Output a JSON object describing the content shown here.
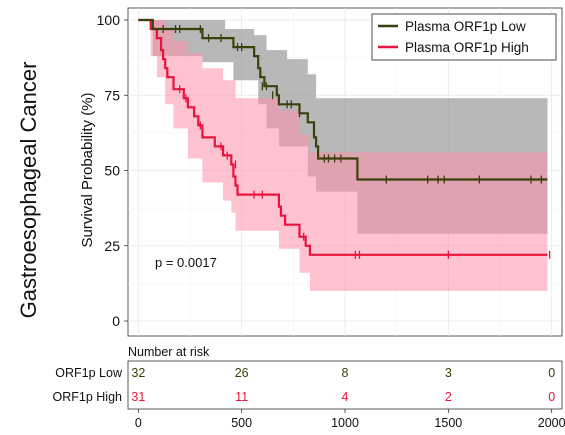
{
  "figure": {
    "row_label": "Gastroesophageal Cancer"
  },
  "chart_data": {
    "type": "line",
    "title": "",
    "xlabel": "",
    "ylabel": "Survival Probability (%)",
    "xlim": [
      -50,
      2050
    ],
    "ylim": [
      0,
      100
    ],
    "x_ticks": [
      0,
      500,
      1000,
      1500,
      2000
    ],
    "y_ticks": [
      0,
      25,
      50,
      75,
      100
    ],
    "grid": true,
    "legend_position": "top-right",
    "annotation": "p = 0.0017",
    "colors": {
      "low": "#3b3f0a",
      "high": "#e8143c",
      "low_band": "#9a9a9a",
      "high_band": "#ff8fab"
    },
    "series": [
      {
        "name": "Plasma ORF1p Low",
        "steps": [
          [
            0,
            100
          ],
          [
            70,
            97
          ],
          [
            310,
            94
          ],
          [
            460,
            91
          ],
          [
            560,
            88
          ],
          [
            580,
            84
          ],
          [
            590,
            81
          ],
          [
            610,
            78
          ],
          [
            670,
            75
          ],
          [
            680,
            72
          ],
          [
            780,
            69
          ],
          [
            820,
            66
          ],
          [
            850,
            61
          ],
          [
            860,
            58
          ],
          [
            870,
            54
          ],
          [
            1060,
            47
          ],
          [
            1980,
            47
          ]
        ],
        "censored": [
          [
            120,
            97
          ],
          [
            180,
            97
          ],
          [
            200,
            97
          ],
          [
            300,
            97
          ],
          [
            340,
            94
          ],
          [
            400,
            94
          ],
          [
            480,
            91
          ],
          [
            500,
            91
          ],
          [
            600,
            78
          ],
          [
            620,
            78
          ],
          [
            650,
            75
          ],
          [
            720,
            72
          ],
          [
            740,
            72
          ],
          [
            780,
            69
          ],
          [
            900,
            54
          ],
          [
            920,
            54
          ],
          [
            950,
            54
          ],
          [
            980,
            54
          ],
          [
            1200,
            47
          ],
          [
            1400,
            47
          ],
          [
            1450,
            47
          ],
          [
            1480,
            47
          ],
          [
            1650,
            47
          ],
          [
            1900,
            47
          ],
          [
            1950,
            47
          ]
        ],
        "band_upper": [
          [
            0,
            100
          ],
          [
            360,
            100
          ],
          [
            420,
            97
          ],
          [
            560,
            95
          ],
          [
            620,
            90
          ],
          [
            720,
            87
          ],
          [
            820,
            82
          ],
          [
            860,
            74
          ],
          [
            1060,
            74
          ],
          [
            1980,
            74
          ]
        ],
        "band_lower": [
          [
            0,
            100
          ],
          [
            70,
            88
          ],
          [
            310,
            86
          ],
          [
            460,
            80
          ],
          [
            580,
            72
          ],
          [
            620,
            64
          ],
          [
            680,
            58
          ],
          [
            820,
            48
          ],
          [
            860,
            43
          ],
          [
            1060,
            29
          ],
          [
            1980,
            29
          ]
        ]
      },
      {
        "name": "Plasma ORF1p High",
        "steps": [
          [
            0,
            100
          ],
          [
            60,
            97
          ],
          [
            90,
            94
          ],
          [
            110,
            90
          ],
          [
            120,
            87
          ],
          [
            130,
            84
          ],
          [
            140,
            81
          ],
          [
            170,
            77
          ],
          [
            220,
            74
          ],
          [
            240,
            71
          ],
          [
            270,
            68
          ],
          [
            290,
            65
          ],
          [
            310,
            61
          ],
          [
            370,
            58
          ],
          [
            410,
            55
          ],
          [
            450,
            52
          ],
          [
            460,
            48
          ],
          [
            470,
            45
          ],
          [
            480,
            42
          ],
          [
            680,
            38
          ],
          [
            690,
            35
          ],
          [
            710,
            32
          ],
          [
            780,
            28
          ],
          [
            810,
            25
          ],
          [
            830,
            22
          ],
          [
            1980,
            22
          ]
        ],
        "censored": [
          [
            200,
            77
          ],
          [
            230,
            74
          ],
          [
            300,
            65
          ],
          [
            400,
            58
          ],
          [
            430,
            55
          ],
          [
            470,
            52
          ],
          [
            560,
            42
          ],
          [
            600,
            42
          ],
          [
            800,
            28
          ],
          [
            1050,
            22
          ],
          [
            1070,
            22
          ],
          [
            1500,
            22
          ],
          [
            1990,
            22
          ]
        ],
        "band_upper": [
          [
            0,
            100
          ],
          [
            90,
            100
          ],
          [
            130,
            97
          ],
          [
            170,
            93
          ],
          [
            240,
            89
          ],
          [
            310,
            84
          ],
          [
            410,
            80
          ],
          [
            470,
            74
          ],
          [
            680,
            70
          ],
          [
            780,
            62
          ],
          [
            830,
            56
          ],
          [
            1980,
            56
          ]
        ],
        "band_lower": [
          [
            0,
            100
          ],
          [
            60,
            88
          ],
          [
            90,
            81
          ],
          [
            130,
            72
          ],
          [
            170,
            64
          ],
          [
            240,
            54
          ],
          [
            310,
            46
          ],
          [
            410,
            40
          ],
          [
            450,
            36
          ],
          [
            470,
            30
          ],
          [
            680,
            24
          ],
          [
            780,
            16
          ],
          [
            830,
            10
          ],
          [
            1980,
            10
          ]
        ]
      }
    ]
  },
  "risk_table": {
    "title": "Number at risk",
    "rows": [
      {
        "label": "ORF1p Low",
        "counts": [
          "32",
          "26",
          "8",
          "3",
          "0"
        ]
      },
      {
        "label": "ORF1p High",
        "counts": [
          "31",
          "11",
          "4",
          "2",
          "0"
        ]
      }
    ],
    "x_tick_labels": [
      "0",
      "500",
      "1000",
      "1500",
      "2000"
    ]
  }
}
